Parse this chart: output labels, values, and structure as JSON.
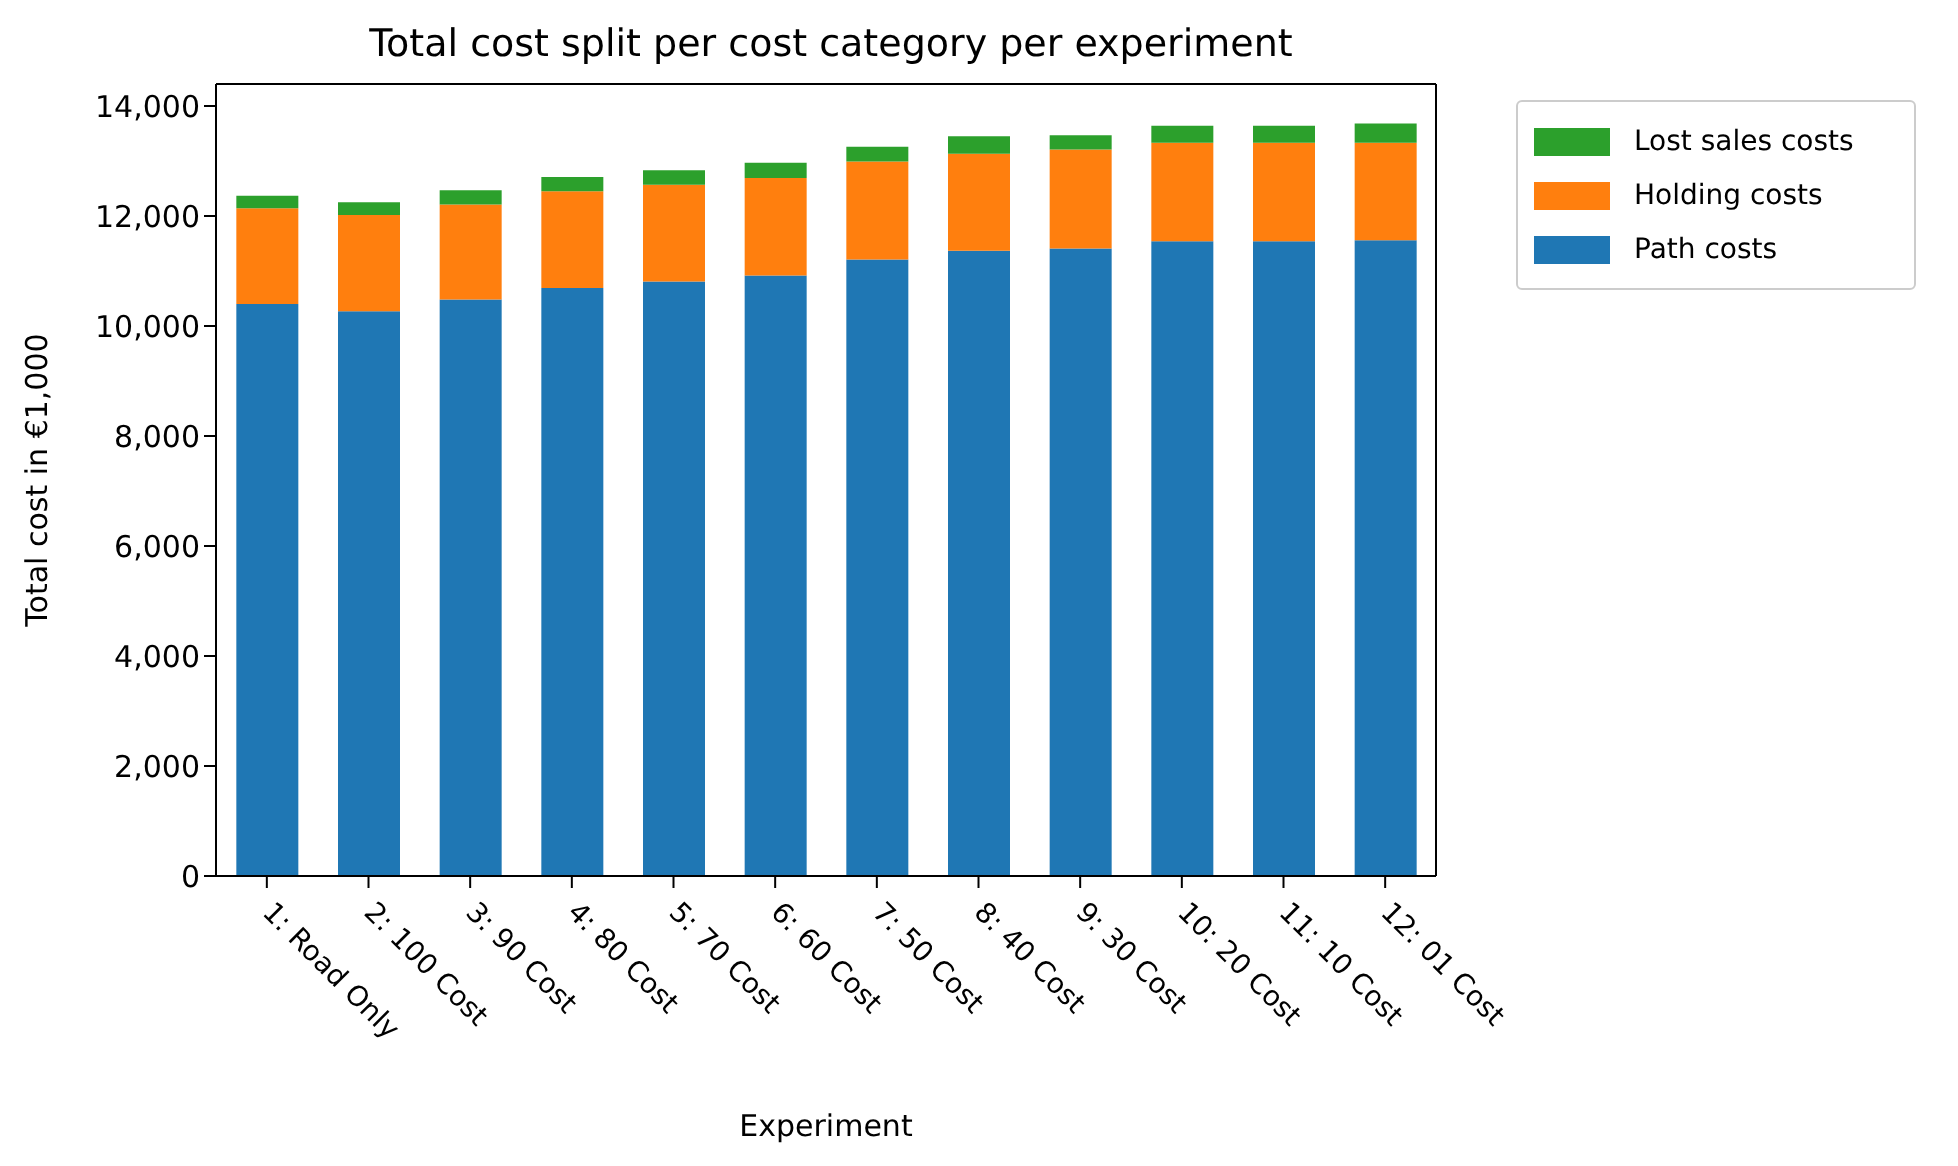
{
  "chart_data": {
    "type": "bar",
    "title": "Total cost split per cost category per experiment",
    "xlabel": "Experiment",
    "ylabel": "Total cost in €1,000",
    "categories": [
      "1: Road Only",
      "2: 100 Cost",
      "3: 90 Cost",
      "4: 80 Cost",
      "5: 70 Cost",
      "6: 60 Cost",
      "7: 50 Cost",
      "8: 40 Cost",
      "9: 30 Cost",
      "10: 20 Cost",
      "11: 10 Cost",
      "12: 01 Cost"
    ],
    "stacked": true,
    "series": [
      {
        "name": "Path costs",
        "color": "#1f77b4",
        "values": [
          10400,
          10270,
          10480,
          10690,
          10810,
          10920,
          11210,
          11370,
          11410,
          11540,
          11540,
          11560
        ]
      },
      {
        "name": "Holding costs",
        "color": "#ff7f0e",
        "values": [
          1740,
          1750,
          1730,
          1760,
          1760,
          1770,
          1780,
          1760,
          1800,
          1790,
          1790,
          1770
        ]
      },
      {
        "name": "Lost sales costs",
        "color": "#2ca02c",
        "values": [
          230,
          230,
          260,
          260,
          260,
          280,
          270,
          320,
          260,
          310,
          310,
          350
        ]
      }
    ],
    "ylim": [
      0,
      14400
    ],
    "yticks": [
      {
        "value": 0,
        "label": "0"
      },
      {
        "value": 2000,
        "label": "2,000"
      },
      {
        "value": 4000,
        "label": "4,000"
      },
      {
        "value": 6000,
        "label": "6,000"
      },
      {
        "value": 8000,
        "label": "8,000"
      },
      {
        "value": 10000,
        "label": "10,000"
      },
      {
        "value": 12000,
        "label": "12,000"
      },
      {
        "value": 14000,
        "label": "14,000"
      }
    ],
    "grid": false,
    "legend": "top right"
  }
}
